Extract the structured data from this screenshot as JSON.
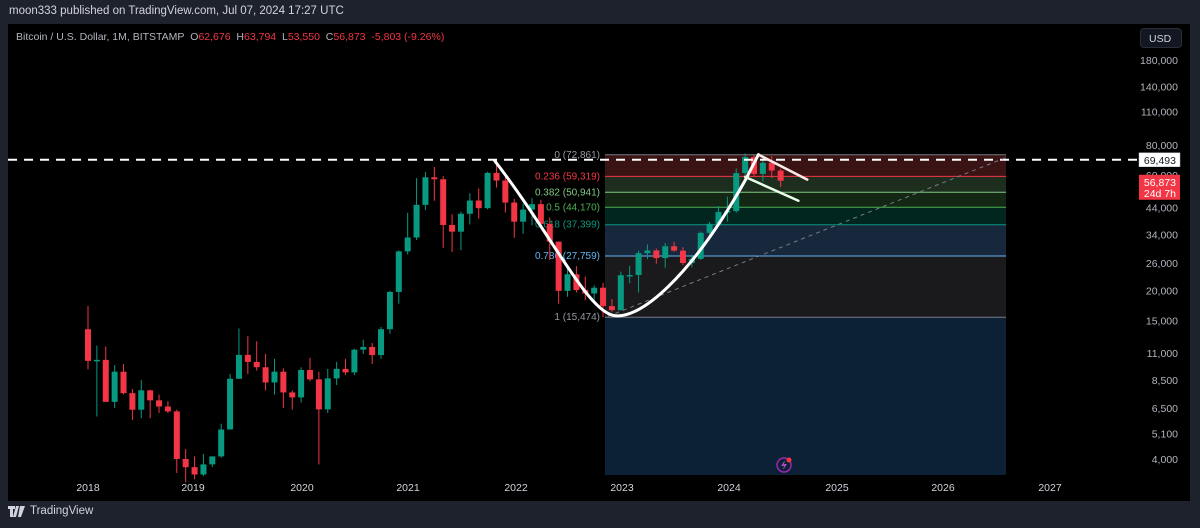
{
  "header": {
    "published_line": "moon333 published on TradingView.com, Jul 07, 2024 17:27 UTC"
  },
  "legend": {
    "symbol": "Bitcoin / U.S. Dollar, 1M, BITSTAMP",
    "open_label": "O",
    "open": "62,676",
    "high_label": "H",
    "high": "63,794",
    "low_label": "L",
    "low": "53,550",
    "close_label": "C",
    "close": "56,873",
    "change": "-5,803 (-9.26%)"
  },
  "currency_button": "USD",
  "price_scale": [
    "180,000",
    "140,000",
    "110,000",
    "80,000",
    "60,000",
    "44,000",
    "34,000",
    "26,000",
    "20,000",
    "15,000",
    "11,000",
    "8,500",
    "6,500",
    "5,100",
    "4,000"
  ],
  "price_tags": {
    "horizontal_line": "69,493",
    "last_price": "56,873",
    "countdown": "24d 7h"
  },
  "time_axis": [
    "2018",
    "2019",
    "2020",
    "2021",
    "2022",
    "2023",
    "2024",
    "2025",
    "2026",
    "2027"
  ],
  "fib_levels": [
    {
      "label": "0 (72,861)",
      "color": "#9598a1"
    },
    {
      "label": "0.236 (59,319)",
      "color": "#f23645"
    },
    {
      "label": "0.382 (50,941)",
      "color": "#81c784"
    },
    {
      "label": "0.5 (44,170)",
      "color": "#4caf50"
    },
    {
      "label": "0.618 (37,399)",
      "color": "#089981"
    },
    {
      "label": "0.786 (27,759)",
      "color": "#64b5f6"
    },
    {
      "label": "1 (15,474)",
      "color": "#9598a1"
    }
  ],
  "footer": {
    "logo_text": "TradingView"
  },
  "colors": {
    "up": "#089981",
    "down": "#f23645",
    "background": "#000000",
    "frame": "#1e222d"
  },
  "chart_data": {
    "type": "candlestick",
    "title": "Bitcoin / U.S. Dollar, 1M, BITSTAMP",
    "xlabel": "",
    "ylabel": "USD (log scale)",
    "ylim": [
      3600,
      200000
    ],
    "x_ticks": [
      "2018",
      "2019",
      "2020",
      "2021",
      "2022",
      "2023",
      "2024",
      "2025",
      "2026",
      "2027"
    ],
    "y_ticks": [
      4000,
      5100,
      6500,
      8500,
      11000,
      15000,
      20000,
      26000,
      34000,
      44000,
      60000,
      80000,
      110000,
      140000,
      180000
    ],
    "last_candle": {
      "open": 62676,
      "high": 63794,
      "low": 53550,
      "close": 56873,
      "change": -5803,
      "change_pct": -9.26
    },
    "horizontal_line": 69493,
    "fibonacci_retracement": {
      "high": 72861,
      "low": 15474,
      "levels": [
        {
          "ratio": 0,
          "price": 72861
        },
        {
          "ratio": 0.236,
          "price": 59319
        },
        {
          "ratio": 0.382,
          "price": 50941
        },
        {
          "ratio": 0.5,
          "price": 44170
        },
        {
          "ratio": 0.618,
          "price": 37399
        },
        {
          "ratio": 0.786,
          "price": 27759
        },
        {
          "ratio": 1,
          "price": 15474
        }
      ]
    },
    "annotations": [
      "white cup curve from 2021 high to 2022 low to 2024 high",
      "handle lines after 2024 peak",
      "dashed trendline from 2022 low rising to 2026"
    ],
    "legend_position": "top-left"
  }
}
